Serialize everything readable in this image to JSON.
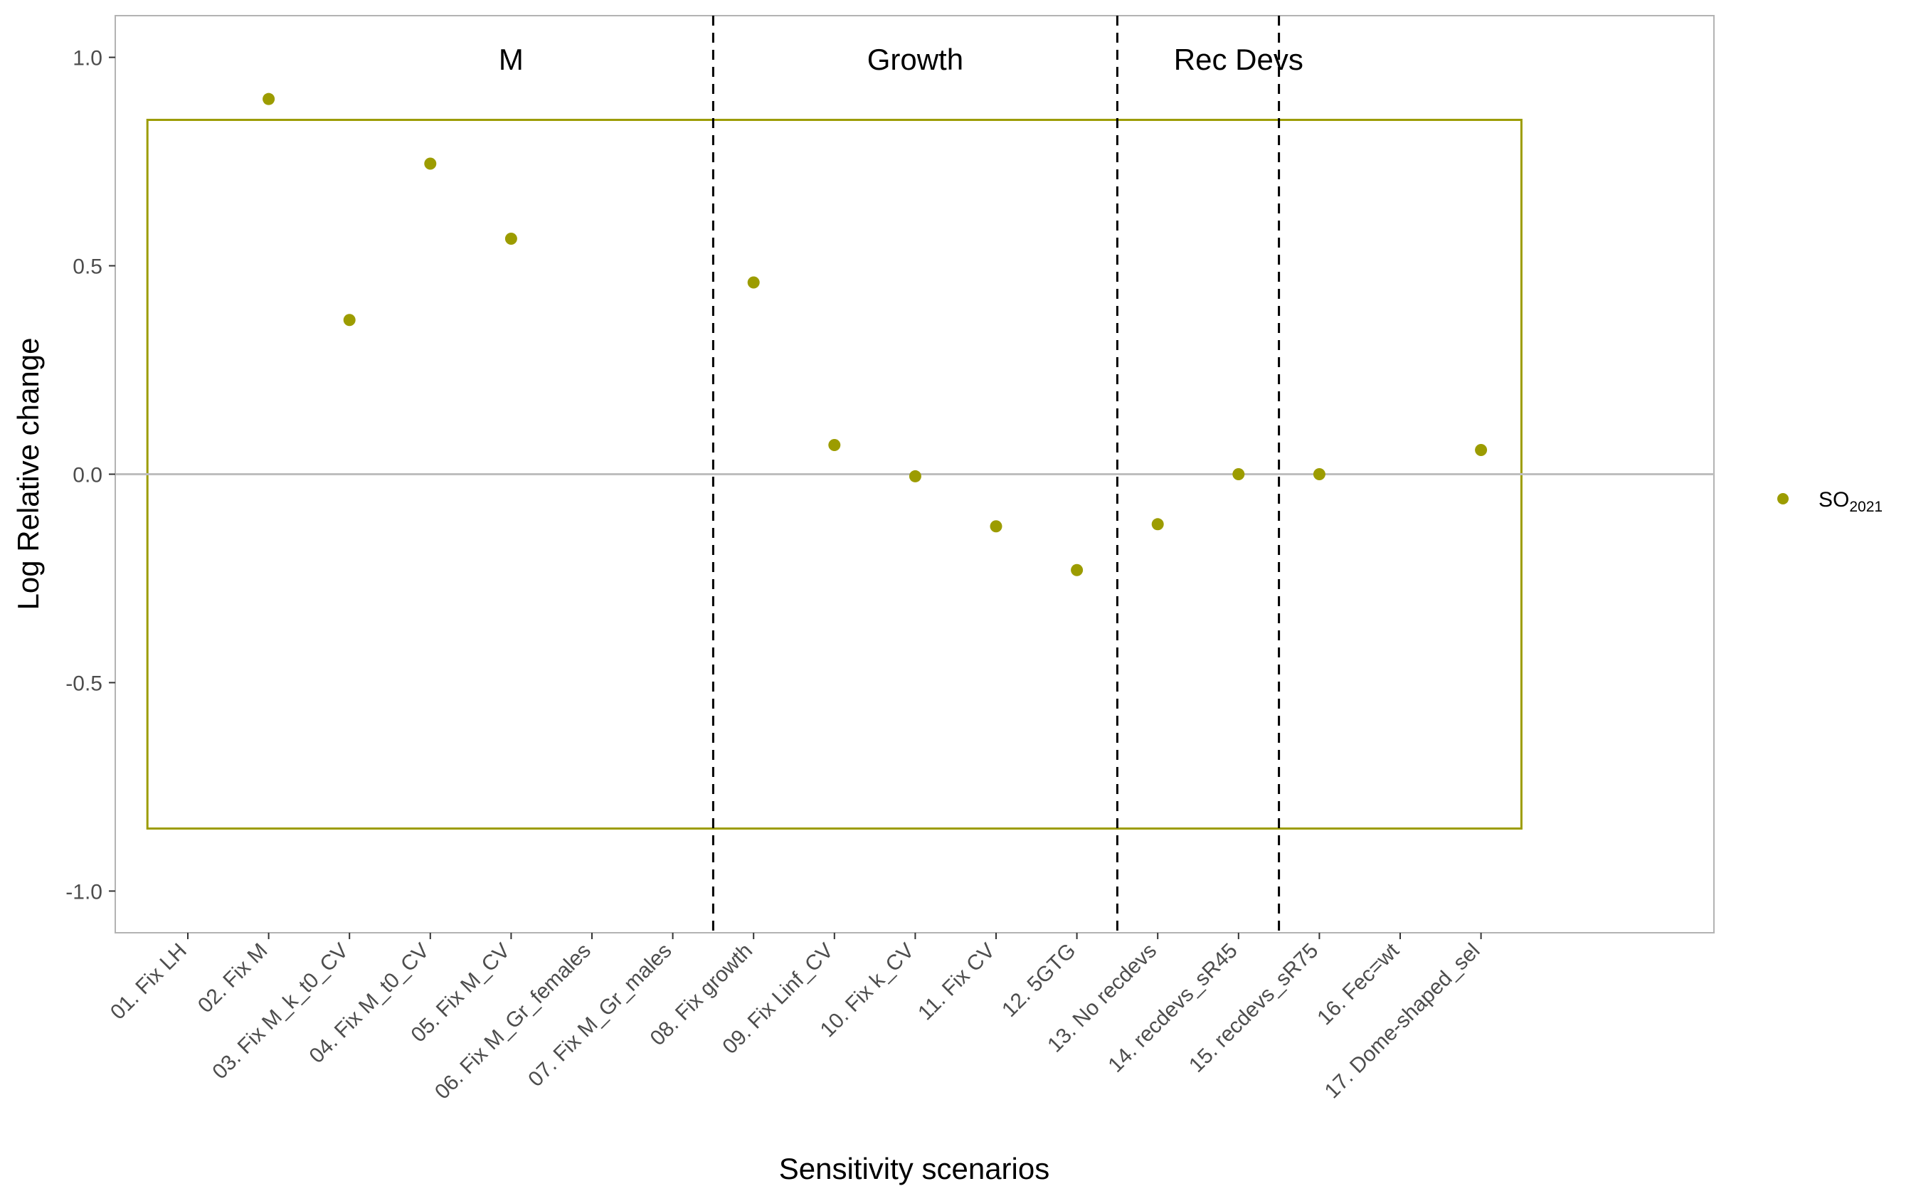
{
  "chart_data": {
    "type": "scatter",
    "xlabel": "Sensitivity scenarios",
    "ylabel": "Log Relative change",
    "categories": [
      "01. Fix LH",
      "02. Fix M",
      "03. Fix M_k_t0_CV",
      "04. Fix M_t0_CV",
      "05. Fix M_CV",
      "06. Fix M_Gr_females",
      "07. Fix M_Gr_males",
      "08. Fix growth",
      "09. Fix Linf_CV",
      "10. Fix k_CV",
      "11. Fix CV",
      "12. 5GTG",
      "13. No recdevs",
      "14. recdevs_sR45",
      "15. recdevs_sR75",
      "16. Fec=wt",
      "17. Dome-shaped_sel"
    ],
    "ylim": [
      -1.1,
      1.1
    ],
    "yticks": [
      -1.0,
      -0.5,
      0.0,
      0.5,
      1.0
    ],
    "ytick_labels": [
      "-1.0",
      "-0.5",
      "0.0",
      "0.5",
      "1.0"
    ],
    "series": [
      {
        "name": "SO",
        "name_sub": "2021",
        "color": "#9c9c00",
        "values": [
          null,
          0.9,
          0.37,
          0.745,
          0.565,
          null,
          null,
          0.46,
          0.07,
          -0.005,
          -0.125,
          -0.23,
          -0.12,
          0.0,
          0.0,
          null,
          0.058
        ]
      }
    ],
    "reference_box": {
      "ymin": -0.85,
      "ymax": 0.85,
      "color": "#9c9c00"
    },
    "hline": {
      "y": 0.0,
      "color": "#bebebe"
    },
    "group_dividers": [
      7.5,
      12.5,
      14.5
    ],
    "groups": [
      {
        "label": "M",
        "center": 5
      },
      {
        "label": "Growth",
        "center": 10
      },
      {
        "label": "Rec Devs",
        "center": 14
      }
    ],
    "grid": false,
    "legend_position": "right"
  }
}
